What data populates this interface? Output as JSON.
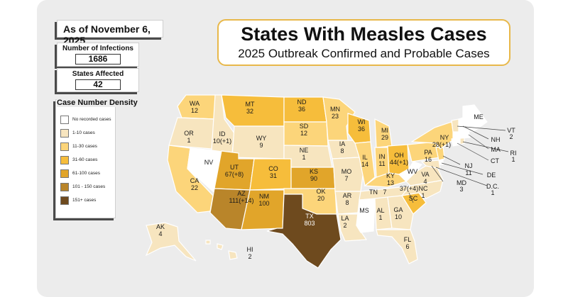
{
  "as_of": "As of November 6, 2025",
  "title": "States With Measles Cases",
  "subtitle": "2025 Outbreak Confirmed and Probable Cases",
  "infections": {
    "label": "Number of Infections",
    "value": "1686"
  },
  "states_affected": {
    "label": "States Affected",
    "value": "42"
  },
  "legend": {
    "title": "Case Number Density",
    "items": [
      {
        "label": "No recorded cases",
        "color": "#ffffff"
      },
      {
        "label": "1-10 cases",
        "color": "#f7e5bf"
      },
      {
        "label": "11-30 cases",
        "color": "#fcd57a"
      },
      {
        "label": "31-60 cases",
        "color": "#f6bd3b"
      },
      {
        "label": "61-100 cases",
        "color": "#e1a52a"
      },
      {
        "label": "101 - 150 cases",
        "color": "#b9852a"
      },
      {
        "label": "151+ cases",
        "color": "#6e4a1e"
      }
    ]
  },
  "states": {
    "WA": {
      "abbr": "WA",
      "value": "12"
    },
    "OR": {
      "abbr": "OR",
      "value": "1"
    },
    "CA": {
      "abbr": "CA",
      "value": "22"
    },
    "NV": {
      "abbr": "NV",
      "value": ""
    },
    "ID": {
      "abbr": "ID",
      "value": "10(+1)"
    },
    "MT": {
      "abbr": "MT",
      "value": "32"
    },
    "WY": {
      "abbr": "WY",
      "value": "9"
    },
    "UT": {
      "abbr": "UT",
      "value": "67(+8)"
    },
    "AZ": {
      "abbr": "AZ",
      "value": "111(+14)"
    },
    "CO": {
      "abbr": "CO",
      "value": "31"
    },
    "NM": {
      "abbr": "NM",
      "value": "100"
    },
    "ND": {
      "abbr": "ND",
      "value": "36"
    },
    "SD": {
      "abbr": "SD",
      "value": "12"
    },
    "NE": {
      "abbr": "NE",
      "value": "1"
    },
    "KS": {
      "abbr": "KS",
      "value": "90"
    },
    "OK": {
      "abbr": "OK",
      "value": "20"
    },
    "TX": {
      "abbr": "TX",
      "value": "803"
    },
    "MN": {
      "abbr": "MN",
      "value": "23"
    },
    "IA": {
      "abbr": "IA",
      "value": "8"
    },
    "MO": {
      "abbr": "MO",
      "value": "7"
    },
    "AR": {
      "abbr": "AR",
      "value": "8"
    },
    "LA": {
      "abbr": "LA",
      "value": "2"
    },
    "WI": {
      "abbr": "WI",
      "value": "36"
    },
    "IL": {
      "abbr": "IL",
      "value": "14"
    },
    "MI": {
      "abbr": "MI",
      "value": "29"
    },
    "IN": {
      "abbr": "IN",
      "value": "11"
    },
    "OH": {
      "abbr": "OH",
      "value": "44(+1)"
    },
    "KY": {
      "abbr": "KY",
      "value": "13"
    },
    "TN": {
      "abbr": "TN",
      "value": "7"
    },
    "MS": {
      "abbr": "MS",
      "value": ""
    },
    "AL": {
      "abbr": "AL",
      "value": "1"
    },
    "GA": {
      "abbr": "GA",
      "value": "10"
    },
    "FL": {
      "abbr": "FL",
      "value": "6"
    },
    "SC": {
      "abbr": "SC",
      "value": "37(+4)"
    },
    "NC": {
      "abbr": "NC",
      "value": "1"
    },
    "VA": {
      "abbr": "VA",
      "value": "4"
    },
    "WV": {
      "abbr": "WV",
      "value": ""
    },
    "PA": {
      "abbr": "PA",
      "value": "16"
    },
    "NY": {
      "abbr": "NY",
      "value": "28(+1)"
    },
    "ME": {
      "abbr": "ME",
      "value": ""
    },
    "NH": {
      "abbr": "NH",
      "value": ""
    },
    "VT": {
      "abbr": "VT",
      "value": "2"
    },
    "MA": {
      "abbr": "MA",
      "value": ""
    },
    "RI": {
      "abbr": "RI",
      "value": "1"
    },
    "CT": {
      "abbr": "CT",
      "value": ""
    },
    "NJ": {
      "abbr": "NJ",
      "value": "11"
    },
    "DE": {
      "abbr": "DE",
      "value": ""
    },
    "MD": {
      "abbr": "MD",
      "value": "3"
    },
    "DC": {
      "abbr": "D.C.",
      "value": "1"
    },
    "AK": {
      "abbr": "AK",
      "value": "4"
    },
    "HI": {
      "abbr": "HI",
      "value": "2"
    }
  }
}
